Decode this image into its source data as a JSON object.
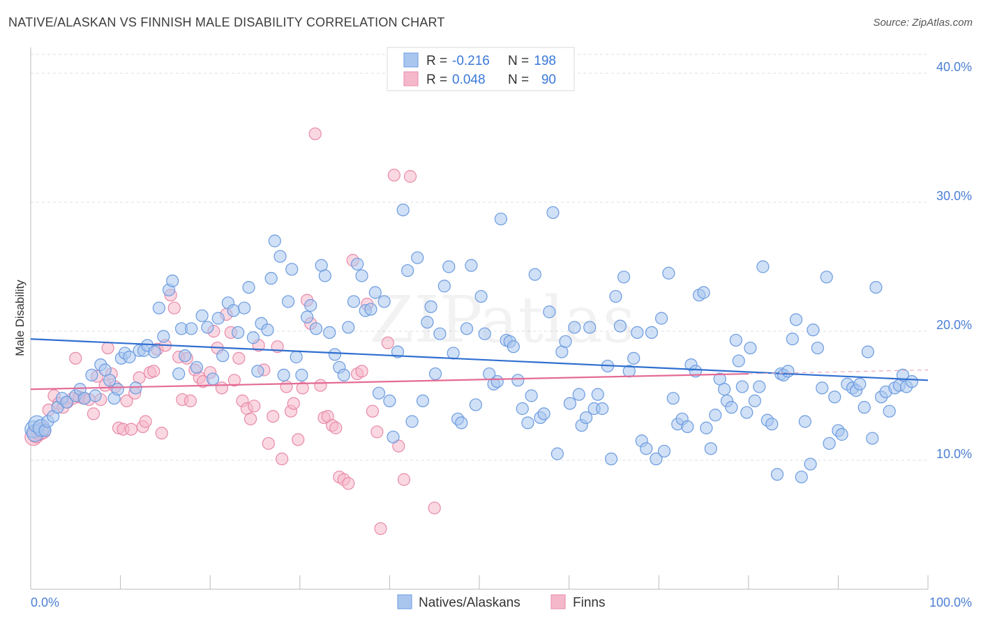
{
  "header": {
    "title": "NATIVE/ALASKAN VS FINNISH MALE DISABILITY CORRELATION CHART",
    "source": "Source: ZipAtlas.com"
  },
  "watermark": "ZIPatlas",
  "colors": {
    "blue_fill": "#a9c6ef",
    "blue_stroke": "#6b9be0",
    "blue_line": "#2f6fd0",
    "pink_fill": "#f5b8cb",
    "pink_stroke": "#e88aa8",
    "pink_line": "#e46b95",
    "tick_text": "#4a7fd4"
  },
  "legend": {
    "rows": [
      {
        "r_label": "R = ",
        "r_value": "-0.216",
        "n_label": "N = ",
        "n_value": "198"
      },
      {
        "r_label": "R = ",
        "r_value": "0.048",
        "n_label": "N = ",
        "n_value": "90"
      }
    ]
  },
  "chart_data": {
    "type": "scatter",
    "xlabel": "",
    "ylabel": "Male Disability",
    "xlim": [
      0,
      100
    ],
    "ylim": [
      0,
      42
    ],
    "x_tick_labels": [
      "0.0%",
      "100.0%"
    ],
    "y_ticks": [
      {
        "value": 10,
        "label": "10.0%"
      },
      {
        "value": 20,
        "label": "20.0%"
      },
      {
        "value": 30,
        "label": "30.0%"
      },
      {
        "value": 40,
        "label": "40.0%"
      }
    ],
    "grid": "horizontal-dashed",
    "legend_position": "top-center",
    "series": [
      {
        "name": "Natives/Alaskans",
        "color": "blue",
        "trend": {
          "x0": 0,
          "y0": 19.4,
          "x1": 100,
          "y1": 16.2
        },
        "points": [
          [
            0.3,
            12.4
          ],
          [
            0.5,
            12.1
          ],
          [
            0.7,
            12.8
          ],
          [
            1.2,
            12.5
          ],
          [
            1.6,
            12.3
          ],
          [
            1.9,
            13.0
          ],
          [
            2.5,
            13.4
          ],
          [
            3.0,
            14.1
          ],
          [
            3.5,
            14.8
          ],
          [
            4.0,
            14.5
          ],
          [
            5.0,
            15.0
          ],
          [
            5.5,
            15.5
          ],
          [
            6.0,
            14.8
          ],
          [
            6.8,
            16.6
          ],
          [
            7.2,
            15.0
          ],
          [
            7.8,
            17.4
          ],
          [
            8.3,
            17.0
          ],
          [
            8.8,
            16.2
          ],
          [
            9.3,
            14.8
          ],
          [
            9.7,
            15.5
          ],
          [
            10.1,
            17.9
          ],
          [
            10.5,
            18.3
          ],
          [
            11.0,
            18.0
          ],
          [
            11.7,
            15.6
          ],
          [
            12.1,
            18.5
          ],
          [
            12.6,
            18.5
          ],
          [
            13.0,
            18.9
          ],
          [
            13.8,
            18.4
          ],
          [
            14.3,
            21.8
          ],
          [
            14.8,
            19.6
          ],
          [
            15.4,
            23.2
          ],
          [
            15.8,
            23.9
          ],
          [
            16.5,
            16.7
          ],
          [
            16.8,
            20.2
          ],
          [
            17.2,
            18.1
          ],
          [
            17.9,
            20.2
          ],
          [
            18.5,
            17.2
          ],
          [
            19.1,
            21.2
          ],
          [
            19.7,
            20.3
          ],
          [
            20.3,
            16.3
          ],
          [
            20.9,
            21.0
          ],
          [
            21.4,
            18.1
          ],
          [
            22.0,
            22.2
          ],
          [
            22.6,
            21.6
          ],
          [
            23.1,
            19.9
          ],
          [
            23.8,
            21.8
          ],
          [
            24.3,
            23.4
          ],
          [
            24.8,
            19.5
          ],
          [
            25.3,
            16.9
          ],
          [
            25.7,
            20.6
          ],
          [
            26.4,
            20.1
          ],
          [
            26.8,
            24.1
          ],
          [
            27.2,
            27.0
          ],
          [
            27.8,
            25.8
          ],
          [
            28.2,
            16.6
          ],
          [
            28.7,
            22.3
          ],
          [
            29.1,
            24.8
          ],
          [
            29.6,
            18.0
          ],
          [
            30.2,
            16.6
          ],
          [
            30.8,
            21.1
          ],
          [
            31.2,
            22.0
          ],
          [
            31.8,
            20.2
          ],
          [
            32.4,
            25.1
          ],
          [
            32.8,
            24.3
          ],
          [
            33.3,
            19.9
          ],
          [
            33.9,
            18.2
          ],
          [
            34.4,
            17.2
          ],
          [
            34.9,
            16.6
          ],
          [
            35.4,
            20.3
          ],
          [
            36.0,
            22.3
          ],
          [
            36.4,
            25.2
          ],
          [
            36.9,
            24.3
          ],
          [
            37.3,
            21.6
          ],
          [
            37.9,
            21.7
          ],
          [
            38.4,
            23.0
          ],
          [
            38.8,
            15.2
          ],
          [
            39.4,
            22.3
          ],
          [
            40.0,
            14.6
          ],
          [
            40.4,
            11.8
          ],
          [
            40.9,
            18.4
          ],
          [
            41.5,
            29.4
          ],
          [
            42.0,
            24.7
          ],
          [
            42.5,
            13.0
          ],
          [
            43.1,
            25.7
          ],
          [
            43.7,
            14.6
          ],
          [
            44.2,
            20.7
          ],
          [
            44.6,
            21.9
          ],
          [
            45.1,
            16.7
          ],
          [
            45.6,
            19.8
          ],
          [
            46.1,
            23.5
          ],
          [
            46.6,
            25.0
          ],
          [
            47.1,
            18.3
          ],
          [
            47.6,
            13.2
          ],
          [
            48.0,
            12.9
          ],
          [
            48.6,
            20.2
          ],
          [
            49.1,
            25.1
          ],
          [
            49.6,
            14.3
          ],
          [
            50.2,
            22.7
          ],
          [
            50.6,
            19.8
          ],
          [
            51.1,
            16.7
          ],
          [
            51.6,
            15.9
          ],
          [
            52.0,
            16.1
          ],
          [
            52.4,
            28.7
          ],
          [
            53.0,
            19.3
          ],
          [
            53.4,
            19.2
          ],
          [
            53.8,
            18.8
          ],
          [
            54.3,
            16.2
          ],
          [
            54.8,
            14.0
          ],
          [
            55.4,
            12.9
          ],
          [
            55.8,
            15.0
          ],
          [
            56.2,
            24.4
          ],
          [
            56.8,
            13.3
          ],
          [
            57.2,
            13.6
          ],
          [
            57.8,
            21.5
          ],
          [
            58.2,
            29.2
          ],
          [
            58.7,
            10.5
          ],
          [
            59.2,
            18.4
          ],
          [
            59.6,
            19.2
          ],
          [
            60.1,
            14.4
          ],
          [
            60.6,
            20.3
          ],
          [
            61.1,
            15.1
          ],
          [
            61.4,
            12.7
          ],
          [
            61.9,
            13.3
          ],
          [
            62.3,
            20.3
          ],
          [
            62.8,
            14.0
          ],
          [
            63.2,
            15.1
          ],
          [
            63.7,
            14.0
          ],
          [
            64.3,
            17.3
          ],
          [
            64.7,
            10.1
          ],
          [
            65.2,
            22.7
          ],
          [
            65.7,
            20.4
          ],
          [
            66.1,
            24.2
          ],
          [
            66.7,
            16.9
          ],
          [
            67.2,
            17.9
          ],
          [
            67.6,
            19.9
          ],
          [
            68.1,
            11.5
          ],
          [
            68.6,
            10.9
          ],
          [
            69.2,
            19.9
          ],
          [
            69.7,
            10.1
          ],
          [
            70.3,
            21.0
          ],
          [
            70.6,
            10.7
          ],
          [
            71.1,
            24.5
          ],
          [
            71.6,
            14.8
          ],
          [
            72.1,
            12.8
          ],
          [
            72.6,
            13.2
          ],
          [
            73.2,
            12.6
          ],
          [
            73.6,
            17.4
          ],
          [
            74.1,
            16.9
          ],
          [
            74.5,
            22.8
          ],
          [
            75.0,
            23.0
          ],
          [
            75.3,
            12.5
          ],
          [
            75.8,
            10.9
          ],
          [
            76.3,
            13.5
          ],
          [
            76.8,
            16.3
          ],
          [
            77.3,
            15.5
          ],
          [
            77.6,
            14.6
          ],
          [
            78.1,
            14.1
          ],
          [
            78.6,
            19.3
          ],
          [
            78.9,
            17.7
          ],
          [
            79.3,
            15.7
          ],
          [
            79.8,
            13.7
          ],
          [
            80.2,
            18.7
          ],
          [
            80.7,
            14.6
          ],
          [
            81.2,
            15.7
          ],
          [
            81.6,
            25.0
          ],
          [
            82.1,
            13.1
          ],
          [
            82.6,
            12.8
          ],
          [
            83.2,
            8.9
          ],
          [
            83.6,
            16.7
          ],
          [
            83.9,
            16.6
          ],
          [
            84.4,
            16.9
          ],
          [
            84.9,
            19.4
          ],
          [
            85.3,
            20.9
          ],
          [
            85.9,
            8.7
          ],
          [
            86.3,
            13.0
          ],
          [
            86.9,
            9.7
          ],
          [
            87.2,
            20.1
          ],
          [
            87.7,
            18.7
          ],
          [
            88.2,
            15.6
          ],
          [
            88.7,
            24.2
          ],
          [
            89.0,
            11.3
          ],
          [
            89.6,
            14.9
          ],
          [
            90.0,
            12.3
          ],
          [
            90.4,
            12.0
          ],
          [
            91.0,
            15.9
          ],
          [
            91.6,
            15.6
          ],
          [
            92.0,
            15.4
          ],
          [
            92.4,
            15.9
          ],
          [
            92.9,
            14.1
          ],
          [
            93.3,
            18.4
          ],
          [
            93.8,
            11.7
          ],
          [
            94.2,
            23.4
          ],
          [
            94.8,
            14.9
          ],
          [
            95.3,
            15.3
          ],
          [
            95.7,
            13.8
          ],
          [
            96.3,
            15.6
          ],
          [
            96.8,
            15.8
          ],
          [
            97.2,
            16.6
          ],
          [
            97.6,
            15.7
          ],
          [
            98.2,
            16.1
          ]
        ]
      },
      {
        "name": "Finns",
        "color": "pink",
        "trend": {
          "x0": 0,
          "y0": 15.5,
          "x1": 80,
          "y1": 16.7
        },
        "points": [
          [
            0.3,
            11.8
          ],
          [
            0.6,
            12.0
          ],
          [
            1.0,
            12.2
          ],
          [
            1.3,
            12.3
          ],
          [
            2.0,
            13.9
          ],
          [
            2.6,
            15.0
          ],
          [
            3.1,
            14.4
          ],
          [
            3.6,
            14.1
          ],
          [
            4.1,
            14.5
          ],
          [
            4.7,
            14.8
          ],
          [
            5.0,
            17.9
          ],
          [
            5.4,
            14.9
          ],
          [
            5.9,
            14.8
          ],
          [
            6.5,
            14.7
          ],
          [
            7.0,
            13.6
          ],
          [
            7.4,
            16.5
          ],
          [
            7.8,
            14.7
          ],
          [
            8.3,
            15.8
          ],
          [
            8.6,
            18.7
          ],
          [
            9.0,
            16.7
          ],
          [
            9.4,
            15.7
          ],
          [
            9.8,
            12.5
          ],
          [
            10.3,
            12.4
          ],
          [
            10.7,
            14.6
          ],
          [
            11.2,
            12.4
          ],
          [
            11.6,
            15.2
          ],
          [
            12.1,
            16.4
          ],
          [
            12.5,
            12.6
          ],
          [
            12.8,
            13.0
          ],
          [
            13.3,
            16.8
          ],
          [
            13.7,
            16.9
          ],
          [
            14.1,
            18.6
          ],
          [
            14.6,
            12.1
          ],
          [
            15.0,
            18.9
          ],
          [
            15.6,
            22.8
          ],
          [
            16.0,
            21.8
          ],
          [
            16.5,
            18.0
          ],
          [
            16.9,
            14.7
          ],
          [
            17.4,
            17.9
          ],
          [
            17.8,
            14.6
          ],
          [
            18.3,
            17.0
          ],
          [
            18.8,
            16.4
          ],
          [
            19.2,
            16.1
          ],
          [
            20.0,
            16.8
          ],
          [
            20.4,
            20.0
          ],
          [
            20.8,
            18.7
          ],
          [
            21.3,
            15.6
          ],
          [
            21.8,
            21.3
          ],
          [
            22.3,
            19.9
          ],
          [
            22.7,
            16.2
          ],
          [
            23.2,
            17.9
          ],
          [
            23.6,
            14.6
          ],
          [
            24.1,
            14.0
          ],
          [
            24.5,
            13.2
          ],
          [
            24.9,
            14.2
          ],
          [
            25.4,
            18.9
          ],
          [
            26.0,
            17.0
          ],
          [
            26.5,
            11.3
          ],
          [
            27.0,
            13.4
          ],
          [
            27.5,
            18.8
          ],
          [
            28.0,
            10.1
          ],
          [
            28.5,
            15.7
          ],
          [
            29.0,
            13.8
          ],
          [
            29.3,
            14.4
          ],
          [
            29.8,
            11.6
          ],
          [
            30.3,
            15.6
          ],
          [
            30.8,
            22.4
          ],
          [
            31.2,
            20.6
          ],
          [
            31.7,
            35.3
          ],
          [
            32.3,
            15.8
          ],
          [
            32.7,
            13.3
          ],
          [
            33.1,
            13.4
          ],
          [
            33.6,
            12.7
          ],
          [
            34.0,
            12.5
          ],
          [
            34.4,
            8.7
          ],
          [
            34.9,
            8.5
          ],
          [
            35.4,
            8.2
          ],
          [
            35.9,
            25.5
          ],
          [
            36.4,
            16.7
          ],
          [
            36.9,
            16.9
          ],
          [
            37.5,
            22.1
          ],
          [
            38.1,
            13.8
          ],
          [
            38.6,
            12.2
          ],
          [
            39.0,
            4.7
          ],
          [
            39.8,
            19.1
          ],
          [
            40.5,
            32.1
          ],
          [
            41.0,
            11.1
          ],
          [
            41.6,
            8.5
          ],
          [
            42.3,
            32.0
          ],
          [
            45.0,
            6.3
          ]
        ]
      }
    ]
  },
  "bottom_legend": [
    {
      "label": "Natives/Alaskans",
      "color": "blue"
    },
    {
      "label": "Finns",
      "color": "pink"
    }
  ]
}
